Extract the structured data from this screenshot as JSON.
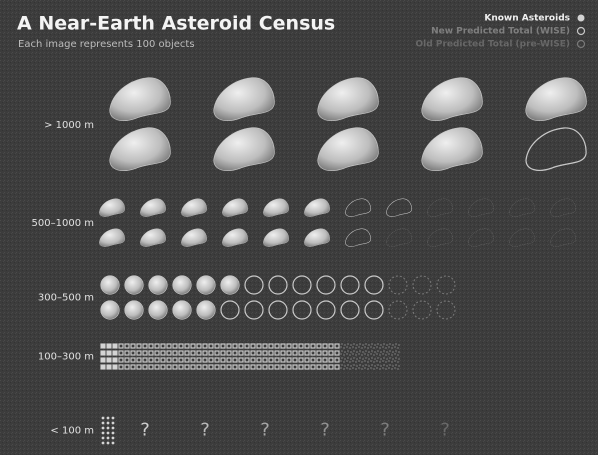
{
  "chart_data": {
    "type": "pictograph",
    "title": "A Near-Earth Asteroid Census",
    "subtitle": "Each image represents 100 objects",
    "categories": [
      "> 1000 m",
      "500–1000 m",
      "300–500 m",
      "100–300 m",
      "< 100 m"
    ],
    "series": [
      {
        "name": "Known Asteroids",
        "color": "#d4d4d4",
        "values": [
          9,
          12,
          11,
          12,
          18
        ]
      },
      {
        "name": "New Predicted Total (WISE)",
        "color": "#c8c8c8",
        "values": [
          10,
          15,
          24,
          160,
          null
        ]
      },
      {
        "name": "Old Predicted Total (pre-WISE)",
        "color": "#7a7a7a",
        "values": [
          10,
          24,
          30,
          200,
          null
        ]
      }
    ],
    "unknown_marker": "?",
    "legend": "top-right"
  }
}
